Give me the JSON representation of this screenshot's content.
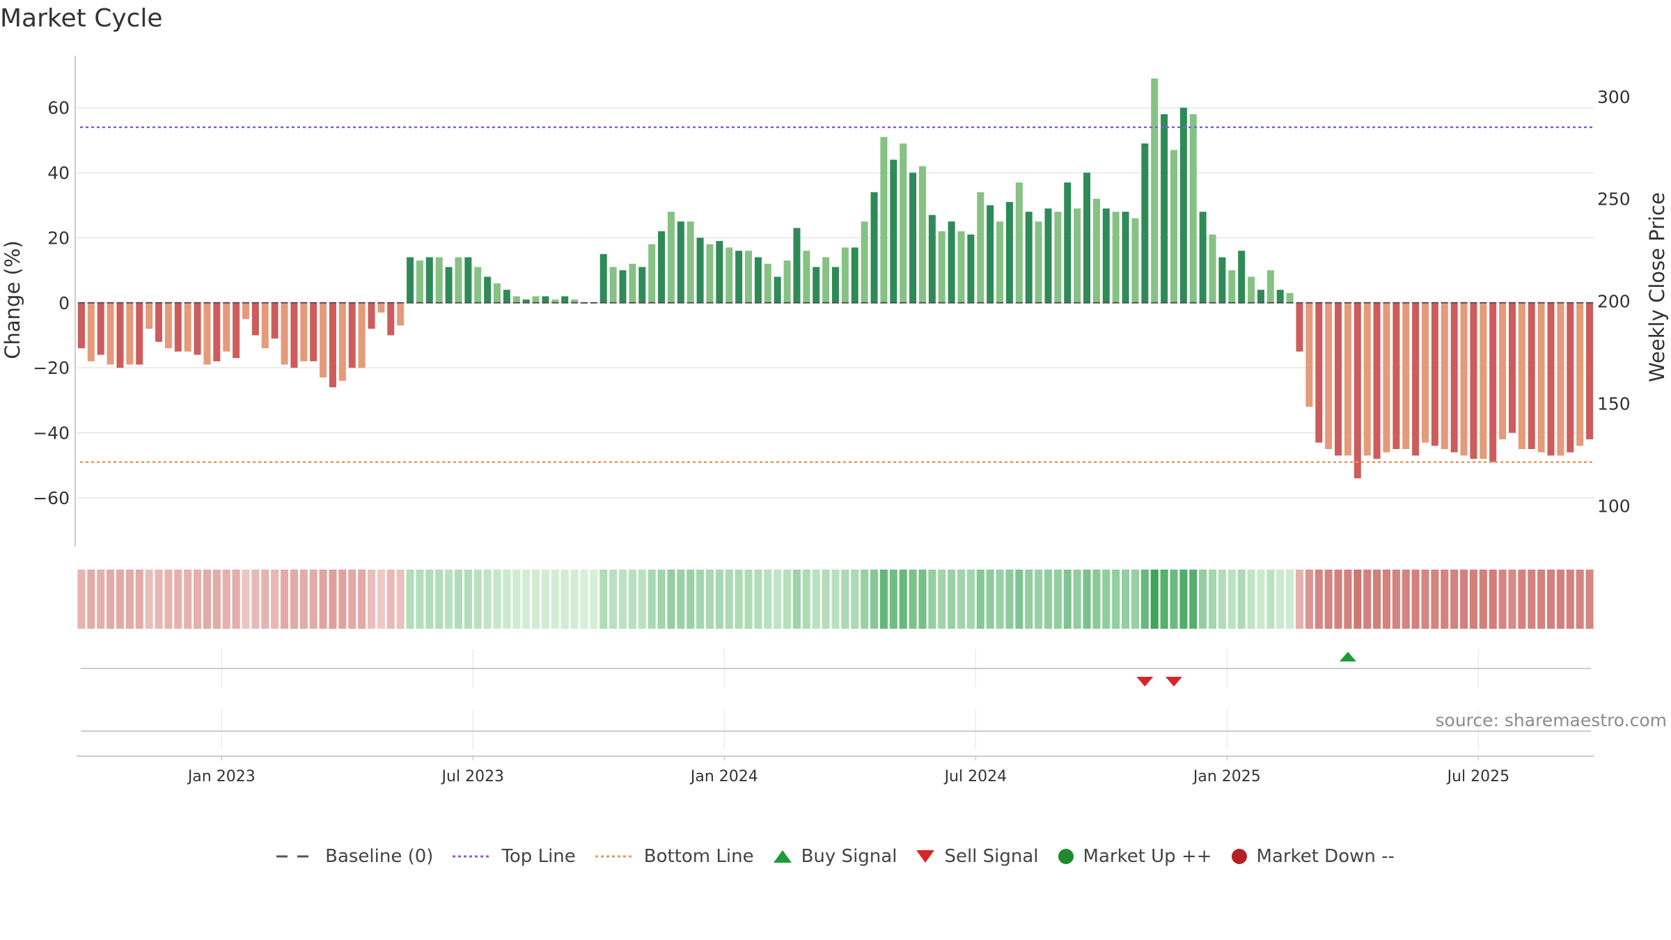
{
  "title": "Market Cycle",
  "source": "source: sharemaestro.com",
  "legend": [
    {
      "label": "Baseline (0)",
      "icon": "baseline-dash",
      "color": "#555555"
    },
    {
      "label": "Top Line",
      "icon": "dotted-line",
      "color": "#8b5cd6"
    },
    {
      "label": "Bottom Line",
      "icon": "dotted-line",
      "color": "#e8975a"
    },
    {
      "label": "Buy Signal",
      "icon": "triangle-up",
      "color": "#1f9a3a"
    },
    {
      "label": "Sell Signal",
      "icon": "triangle-down",
      "color": "#d62728"
    },
    {
      "label": "Market Up ++",
      "icon": "circle",
      "color": "#1f8a2e"
    },
    {
      "label": "Market Down --",
      "icon": "circle",
      "color": "#b22222"
    }
  ],
  "chart_data": {
    "type": "bar",
    "title": "Market Cycle",
    "ylabel": "Change (%)",
    "y2label": "Weekly Close Price",
    "ylim": [
      -75,
      76
    ],
    "y2lim": [
      80,
      320
    ],
    "yticks": [
      60,
      40,
      20,
      0,
      -20,
      -40,
      -60
    ],
    "yticks_labels": [
      "60",
      "40",
      "20",
      "0",
      "−20",
      "−40",
      "−60"
    ],
    "y2ticks": [
      300,
      250,
      200,
      150,
      100
    ],
    "xticks": [
      "Jan 2023",
      "Jul 2023",
      "Jan 2024",
      "Jul 2024",
      "Jan 2025",
      "Jul 2025"
    ],
    "xtick_positions": [
      15,
      41,
      67,
      93,
      119,
      145
    ],
    "grid": true,
    "legend_position": "bottom",
    "top_line": 54,
    "bottom_line": -49,
    "baseline": 0,
    "x_unit": "week index",
    "n_weeks": 157,
    "values": [
      -14,
      -18,
      -16,
      -19,
      -20,
      -19,
      -19,
      -8,
      -12,
      -14,
      -15,
      -15,
      -16,
      -19,
      -18,
      -15,
      -17,
      -5,
      -10,
      -14,
      -11,
      -19,
      -20,
      -18,
      -18,
      -23,
      -26,
      -24,
      -20,
      -20,
      -8,
      -3,
      -10,
      -7,
      14,
      13,
      14,
      14,
      11,
      14,
      14,
      11,
      8,
      6,
      4,
      2,
      1,
      2,
      2,
      1,
      2,
      1,
      0,
      0,
      15,
      11,
      10,
      12,
      11,
      18,
      22,
      28,
      25,
      25,
      20,
      18,
      19,
      17,
      16,
      16,
      14,
      12,
      8,
      13,
      23,
      16,
      11,
      14,
      11,
      17,
      17,
      25,
      34,
      51,
      44,
      49,
      40,
      42,
      27,
      22,
      25,
      22,
      21,
      34,
      30,
      25,
      31,
      37,
      28,
      25,
      29,
      28,
      37,
      29,
      40,
      32,
      29,
      28,
      28,
      26,
      49,
      69,
      58,
      47,
      60,
      58,
      28,
      21,
      14,
      10,
      16,
      8,
      4,
      10,
      4,
      3,
      -15,
      -32,
      -43,
      -45,
      -47,
      -47,
      -54,
      -47,
      -48,
      -46,
      -45,
      -45,
      -47,
      -43,
      -44,
      -45,
      -46,
      -47,
      -48,
      -48,
      -49,
      -42,
      -40,
      -45,
      -45,
      -46,
      -47,
      -47,
      -46,
      -44,
      -42
    ],
    "buy_signals": [
      131
    ],
    "sell_signals": [
      110,
      113
    ],
    "colors": {
      "up_dark": "#2e8b57",
      "up_light": "#86c283",
      "down_dark": "#cd5c5c",
      "down_light": "#e59a7a",
      "top_line": "#8b5cd6",
      "bottom_line": "#e8975a",
      "buy": "#1f9a3a",
      "sell": "#d62728"
    }
  }
}
